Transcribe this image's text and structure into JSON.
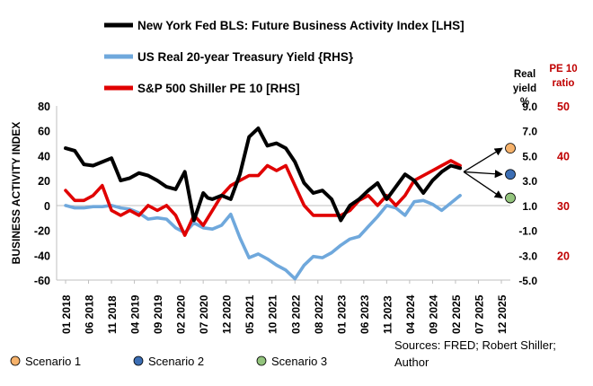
{
  "chart_data": {
    "type": "line",
    "legend": [
      {
        "label": "New York Fed BLS: Future Business Activity Index [LHS]",
        "color": "#000000"
      },
      {
        "label": "US Real 20-year Treasury Yield {RHS}",
        "color": "#6fa8dc"
      },
      {
        "label": "S&P 500 Shiller PE 10 [RHS]",
        "color": "#e00000"
      }
    ],
    "ylabel": "BUSINESS ACTIVITY INDEX",
    "y_left": {
      "min": -60,
      "max": 80,
      "ticks": [
        "80",
        "60",
        "40",
        "20",
        "0",
        "-20",
        "-40",
        "-60"
      ]
    },
    "y_right1": {
      "title_lines": [
        "Real",
        "yield",
        "%"
      ],
      "min": -5,
      "max": 9,
      "ticks": [
        "9.0",
        "7.0",
        "5.0",
        "3.0",
        "1.0",
        "-1.0",
        "-3.0",
        "-5.0"
      ]
    },
    "y_right2": {
      "title_lines": [
        "PE 10",
        "ratio"
      ],
      "min": 15,
      "max": 50,
      "ticks": [
        "50",
        "40",
        "30",
        "20"
      ],
      "color": "#c00000"
    },
    "x_ticks": [
      "01 2018",
      "06 2018",
      "11 2018",
      "04 2019",
      "09 2019",
      "02 2020",
      "07 2020",
      "12 2020",
      "05 2021",
      "10 2021",
      "03 2022",
      "08 2022",
      "01 2023",
      "06 2023",
      "11 2023",
      "04 2024",
      "09 2024",
      "02 2025",
      "07 2025",
      "12 2025"
    ],
    "series": [
      {
        "name": "New York Fed BLS: Future Business Activity Index [LHS]",
        "axis": "left",
        "color": "#000000",
        "x": [
          0,
          2,
          4,
          6,
          8,
          10,
          12,
          14,
          16,
          18,
          20,
          22,
          24,
          26,
          28,
          30,
          31,
          32,
          34,
          36,
          38,
          40,
          42,
          44,
          46,
          48,
          50,
          52,
          54,
          56,
          58,
          60,
          62,
          64,
          66,
          68,
          70,
          72,
          74,
          76,
          78,
          80,
          82,
          84,
          86
        ],
        "y": [
          46,
          44,
          33,
          32,
          35,
          38,
          20,
          22,
          26,
          24,
          20,
          15,
          13,
          27,
          -12,
          10,
          6,
          5,
          8,
          5,
          25,
          55,
          62,
          48,
          50,
          46,
          35,
          18,
          10,
          12,
          5,
          -12,
          0,
          5,
          12,
          18,
          5,
          15,
          25,
          20,
          10,
          20,
          27,
          32,
          30
        ]
      },
      {
        "name": "US Real 20-year Treasury Yield {RHS}",
        "axis": "right1",
        "color": "#6fa8dc",
        "x": [
          0,
          2,
          4,
          6,
          8,
          10,
          12,
          14,
          16,
          18,
          20,
          22,
          24,
          26,
          28,
          30,
          32,
          34,
          36,
          38,
          40,
          42,
          44,
          46,
          48,
          50,
          52,
          54,
          56,
          58,
          60,
          62,
          64,
          66,
          68,
          70,
          72,
          74,
          76,
          78,
          80,
          82,
          84,
          86
        ],
        "y": [
          1.0,
          0.8,
          0.8,
          0.9,
          0.9,
          1.0,
          0.8,
          0.7,
          0.4,
          -0.1,
          0.0,
          -0.1,
          -0.8,
          -1.2,
          -0.4,
          -0.8,
          -0.9,
          -0.6,
          0.3,
          -1.6,
          -3.2,
          -2.9,
          -3.3,
          -3.8,
          -4.2,
          -4.9,
          -3.8,
          -3.1,
          -3.2,
          -2.8,
          -2.2,
          -1.7,
          -1.5,
          -0.7,
          0.1,
          1.0,
          0.8,
          0.2,
          1.3,
          1.4,
          1.1,
          0.6,
          1.2,
          1.8
        ]
      },
      {
        "name": "S&P 500 Shiller PE 10 [RHS]",
        "axis": "right2",
        "color": "#e00000",
        "x": [
          0,
          2,
          4,
          6,
          8,
          10,
          12,
          14,
          16,
          18,
          20,
          22,
          24,
          26,
          28,
          30,
          32,
          34,
          36,
          38,
          40,
          42,
          44,
          46,
          48,
          50,
          52,
          54,
          56,
          58,
          60,
          62,
          64,
          66,
          68,
          70,
          72,
          74,
          76,
          78,
          80,
          82,
          84,
          86
        ],
        "y": [
          33,
          31,
          31,
          32,
          34,
          29,
          28,
          29,
          28,
          30,
          29,
          30,
          28,
          24,
          28,
          26,
          29,
          32,
          34,
          35,
          36,
          36,
          38,
          37,
          38,
          34,
          30,
          28,
          28,
          28,
          28,
          29,
          31,
          32,
          30,
          32,
          30,
          32,
          35,
          36,
          37,
          38,
          39,
          38
        ]
      }
    ],
    "scenarios": [
      {
        "label": "Scenario 1",
        "color": "#f6b26b",
        "real_yield": 5.6
      },
      {
        "label": "Scenario 2",
        "color": "#3c6eb4",
        "real_yield": 3.5
      },
      {
        "label": "Scenario 3",
        "color": "#93c47d",
        "real_yield": 1.6
      }
    ],
    "source_lines": [
      "Sources: FRED; Robert Shiller;",
      "Author"
    ]
  }
}
